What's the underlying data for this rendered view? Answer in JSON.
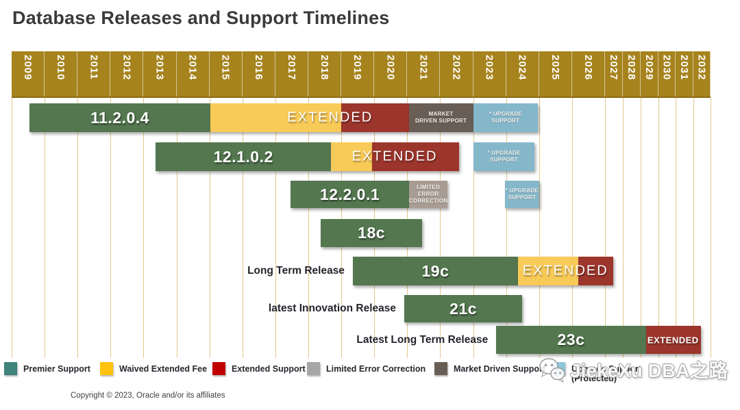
{
  "title": "Database Releases and Support Timelines",
  "copyright": "Copyright © 2023, Oracle and/or its affiliates",
  "watermark": {
    "text": "JiekeXu DBA之路"
  },
  "colors": {
    "header_gold": "#A6831D",
    "gridline": "#E3C78C",
    "premier": "#547750",
    "waived": "#F8CA57",
    "extended": "#9C352C",
    "market": "#695E55",
    "limited": "#A89C93",
    "upgrade": "#85B7CB",
    "legend_premier": "#3F837B",
    "legend_waived": "#FFC20E",
    "legend_extended": "#C00000",
    "legend_limited": "#A6A6A6",
    "legend_market": "#695E55",
    "legend_upgrade": "#8FC7DB"
  },
  "chart_data": {
    "type": "timeline",
    "title": "Database Releases and Support Timelines",
    "legend_position": "bottom",
    "x_axis": {
      "unit": "year",
      "ticks": [
        "2009",
        "2010",
        "2011",
        "2012",
        "2013",
        "2014",
        "2015",
        "2016",
        "2017",
        "2018",
        "2019",
        "2020",
        "2021",
        "2022",
        "2023",
        "2024",
        "2025",
        "2026",
        "2027",
        "2028",
        "2029",
        "2030",
        "2031",
        "2032"
      ],
      "narrow_from": "2027"
    },
    "rows": [
      {
        "name": "11.2.0.4",
        "row_label": "",
        "segments": [
          {
            "kind": "premier",
            "label": "11.2.0.4",
            "start": 2009.55,
            "end": 2015.02
          },
          {
            "kind": "waived",
            "label": "",
            "start": 2015.02,
            "end": 2019.0
          },
          {
            "kind": "extended",
            "label": "",
            "start": 2019.0,
            "end": 2021.05
          },
          {
            "kind": "market",
            "label": "MARKET\nDRIVEN SUPPORT",
            "start": 2021.05,
            "end": 2023.0
          },
          {
            "kind": "upgrade",
            "label": "* UPGRADE\nSUPPORT",
            "start": 2023.0,
            "end": 2024.97
          }
        ],
        "overlay_labels": [
          {
            "text": "EXTENDED",
            "center": 2018.66,
            "small": false
          }
        ]
      },
      {
        "name": "12.1.0.2",
        "row_label": "",
        "segments": [
          {
            "kind": "premier",
            "label": "12.1.0.2",
            "start": 2013.37,
            "end": 2018.69
          },
          {
            "kind": "waived",
            "label": "",
            "start": 2018.69,
            "end": 2019.94
          },
          {
            "kind": "extended",
            "label": "",
            "start": 2019.94,
            "end": 2022.58
          },
          {
            "kind": "upgrade",
            "label": "* UPGRADE\nSUPPORT",
            "start": 2023.0,
            "end": 2024.87
          }
        ],
        "overlay_labels": [
          {
            "text": "EXTENDED",
            "center": 2020.62,
            "small": false
          }
        ]
      },
      {
        "name": "12.2.0.1",
        "row_label": "",
        "segments": [
          {
            "kind": "premier",
            "label": "12.2.0.1",
            "start": 2017.46,
            "end": 2021.06
          },
          {
            "kind": "limited",
            "label": "LIMITED ERROR\nCORRECTION",
            "start": 2021.06,
            "end": 2022.22
          },
          {
            "kind": "upgrade",
            "label": "* UPGRADE\nSUPPORT",
            "start": 2023.97,
            "end": 2025.0
          }
        ],
        "overlay_labels": []
      },
      {
        "name": "18c",
        "row_label": "",
        "segments": [
          {
            "kind": "premier",
            "label": "18c",
            "start": 2018.38,
            "end": 2021.45
          }
        ],
        "overlay_labels": []
      },
      {
        "name": "19c",
        "row_label": "Long Term Release",
        "segments": [
          {
            "kind": "premier",
            "label": "19c",
            "start": 2019.35,
            "end": 2024.36
          },
          {
            "kind": "waived",
            "label": "",
            "start": 2024.36,
            "end": 2026.18
          },
          {
            "kind": "extended",
            "label": "",
            "start": 2026.18,
            "end": 2027.45
          }
        ],
        "overlay_labels": [
          {
            "text": "EXTENDED",
            "center": 2025.8,
            "small": false
          }
        ]
      },
      {
        "name": "21c",
        "row_label": "latest Innovation Release",
        "segments": [
          {
            "kind": "premier",
            "label": "21c",
            "start": 2020.91,
            "end": 2024.49
          }
        ],
        "overlay_labels": []
      },
      {
        "name": "23c",
        "row_label": "Latest Long Term Release",
        "segments": [
          {
            "kind": "premier",
            "label": "23c",
            "start": 2023.7,
            "end": 2029.3
          },
          {
            "kind": "extended",
            "label": "",
            "start": 2029.3,
            "end": 2032.43
          }
        ],
        "overlay_labels": [
          {
            "text": "EXTENDED",
            "center": 2030.85,
            "small": true
          }
        ]
      }
    ]
  },
  "legend": {
    "items": [
      {
        "kind": "legend_premier",
        "label": "Premier Support"
      },
      {
        "kind": "legend_waived",
        "label": "Waived Extended Fee"
      },
      {
        "kind": "legend_extended",
        "label": "Extended Support"
      },
      {
        "kind": "legend_limited",
        "label": "Limited Error Correction"
      },
      {
        "kind": "legend_market",
        "label": "Market Driven Support"
      },
      {
        "kind": "legend_upgrade",
        "label": "Upgrade Support\n(Protected)"
      }
    ]
  }
}
